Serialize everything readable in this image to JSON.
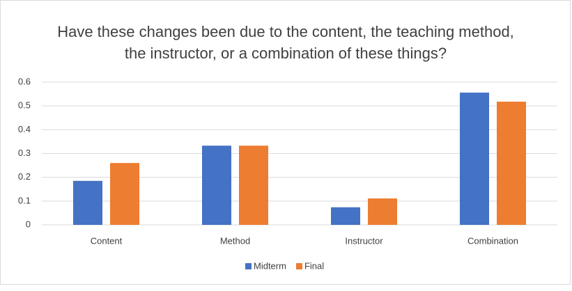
{
  "chart_data": {
    "type": "bar",
    "title": "Have these changes been due to the content, the teaching method, the instructor, or a combination of these things?",
    "categories": [
      "Content",
      "Method",
      "Instructor",
      "Combination"
    ],
    "series": [
      {
        "name": "Midterm",
        "color": "#4472c4",
        "values": [
          0.185,
          0.333,
          0.074,
          0.556
        ]
      },
      {
        "name": "Final",
        "color": "#ed7d31",
        "values": [
          0.26,
          0.333,
          0.111,
          0.518
        ]
      }
    ],
    "ylim": [
      0,
      0.6
    ],
    "yticks": [
      0,
      0.1,
      0.2,
      0.3,
      0.4,
      0.5,
      0.6
    ],
    "grid": true,
    "legend": "bottom"
  }
}
